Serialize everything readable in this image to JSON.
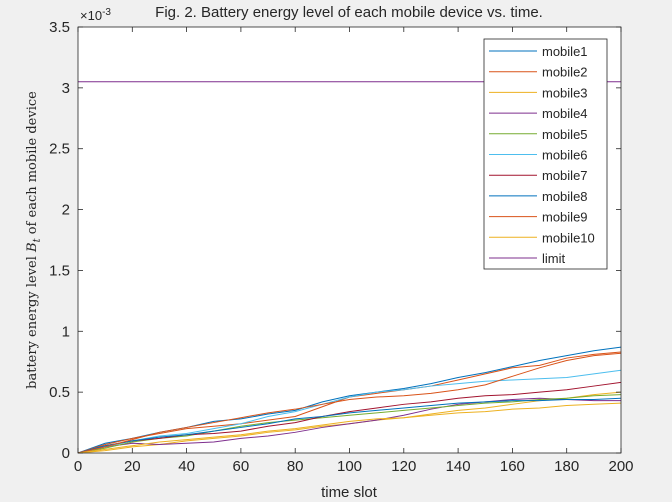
{
  "chart_data": {
    "type": "line",
    "title": "Fig. 2. Battery energy level of each mobile device vs. time.",
    "xlabel": "time slot",
    "ylabel": "battery energy level B_t of each mobile device",
    "ylabel_parts": {
      "before": "battery energy level ",
      "var": "B",
      "sub": "t",
      "after": " of each mobile device"
    },
    "exponent_label": {
      "base": "×10",
      "power": "-3"
    },
    "xlim": [
      0,
      200
    ],
    "ylim": [
      0,
      3.5
    ],
    "x_ticks": [
      "0",
      "20",
      "40",
      "60",
      "80",
      "100",
      "120",
      "140",
      "160",
      "180",
      "200"
    ],
    "y_ticks": [
      "0",
      "0.5",
      "1",
      "1.5",
      "2",
      "2.5",
      "3",
      "3.5"
    ],
    "x": [
      0,
      10,
      20,
      30,
      40,
      50,
      60,
      70,
      80,
      90,
      100,
      110,
      120,
      130,
      140,
      150,
      160,
      170,
      180,
      190,
      200
    ],
    "legend_position": "top-right",
    "series": [
      {
        "name": "mobile1",
        "color": "#0072BD",
        "values": [
          0,
          0.08,
          0.12,
          0.17,
          0.21,
          0.26,
          0.28,
          0.32,
          0.35,
          0.42,
          0.47,
          0.5,
          0.53,
          0.57,
          0.62,
          0.66,
          0.71,
          0.76,
          0.8,
          0.84,
          0.87
        ]
      },
      {
        "name": "mobile2",
        "color": "#D95319",
        "values": [
          0,
          0.07,
          0.12,
          0.16,
          0.2,
          0.22,
          0.24,
          0.27,
          0.3,
          0.38,
          0.46,
          0.49,
          0.52,
          0.55,
          0.6,
          0.65,
          0.7,
          0.72,
          0.78,
          0.81,
          0.83
        ]
      },
      {
        "name": "mobile3",
        "color": "#EDB120",
        "values": [
          0,
          0.02,
          0.05,
          0.07,
          0.1,
          0.12,
          0.14,
          0.17,
          0.19,
          0.22,
          0.24,
          0.27,
          0.29,
          0.32,
          0.35,
          0.37,
          0.4,
          0.43,
          0.45,
          0.48,
          0.5
        ]
      },
      {
        "name": "mobile4",
        "color": "#7E2F8E",
        "values": [
          0,
          0.05,
          0.08,
          0.07,
          0.08,
          0.09,
          0.12,
          0.14,
          0.17,
          0.21,
          0.24,
          0.27,
          0.31,
          0.36,
          0.4,
          0.42,
          0.44,
          0.45,
          0.44,
          0.43,
          0.43
        ]
      },
      {
        "name": "mobile5",
        "color": "#77AC30",
        "values": [
          0,
          0.04,
          0.09,
          0.12,
          0.14,
          0.18,
          0.22,
          0.25,
          0.27,
          0.29,
          0.31,
          0.33,
          0.35,
          0.37,
          0.39,
          0.41,
          0.42,
          0.44,
          0.45,
          0.47,
          0.48
        ]
      },
      {
        "name": "mobile6",
        "color": "#4DBEEE",
        "values": [
          0,
          0.05,
          0.1,
          0.14,
          0.16,
          0.2,
          0.24,
          0.3,
          0.34,
          0.4,
          0.46,
          0.5,
          0.52,
          0.55,
          0.57,
          0.59,
          0.6,
          0.61,
          0.62,
          0.65,
          0.68
        ]
      },
      {
        "name": "mobile7",
        "color": "#A2142F",
        "values": [
          0,
          0.06,
          0.1,
          0.12,
          0.15,
          0.16,
          0.18,
          0.22,
          0.25,
          0.3,
          0.34,
          0.37,
          0.4,
          0.42,
          0.45,
          0.47,
          0.48,
          0.5,
          0.52,
          0.55,
          0.58
        ]
      },
      {
        "name": "mobile8",
        "color": "#0072BD",
        "values": [
          0,
          0.06,
          0.1,
          0.13,
          0.15,
          0.18,
          0.21,
          0.24,
          0.28,
          0.3,
          0.33,
          0.35,
          0.37,
          0.39,
          0.41,
          0.42,
          0.43,
          0.43,
          0.44,
          0.44,
          0.45
        ]
      },
      {
        "name": "mobile9",
        "color": "#D95319",
        "values": [
          0,
          0.05,
          0.11,
          0.17,
          0.21,
          0.25,
          0.29,
          0.33,
          0.36,
          0.4,
          0.44,
          0.46,
          0.47,
          0.49,
          0.52,
          0.56,
          0.63,
          0.7,
          0.76,
          0.8,
          0.82
        ]
      },
      {
        "name": "mobile10",
        "color": "#EDB120",
        "values": [
          0,
          0.03,
          0.06,
          0.09,
          0.11,
          0.13,
          0.15,
          0.18,
          0.2,
          0.23,
          0.26,
          0.28,
          0.29,
          0.31,
          0.33,
          0.34,
          0.36,
          0.37,
          0.39,
          0.4,
          0.41
        ]
      },
      {
        "name": "limit",
        "color": "#7E2F8E",
        "values": [
          3.05,
          3.05,
          3.05,
          3.05,
          3.05,
          3.05,
          3.05,
          3.05,
          3.05,
          3.05,
          3.05,
          3.05,
          3.05,
          3.05,
          3.05,
          3.05,
          3.05,
          3.05,
          3.05,
          3.05,
          3.05
        ]
      }
    ]
  }
}
